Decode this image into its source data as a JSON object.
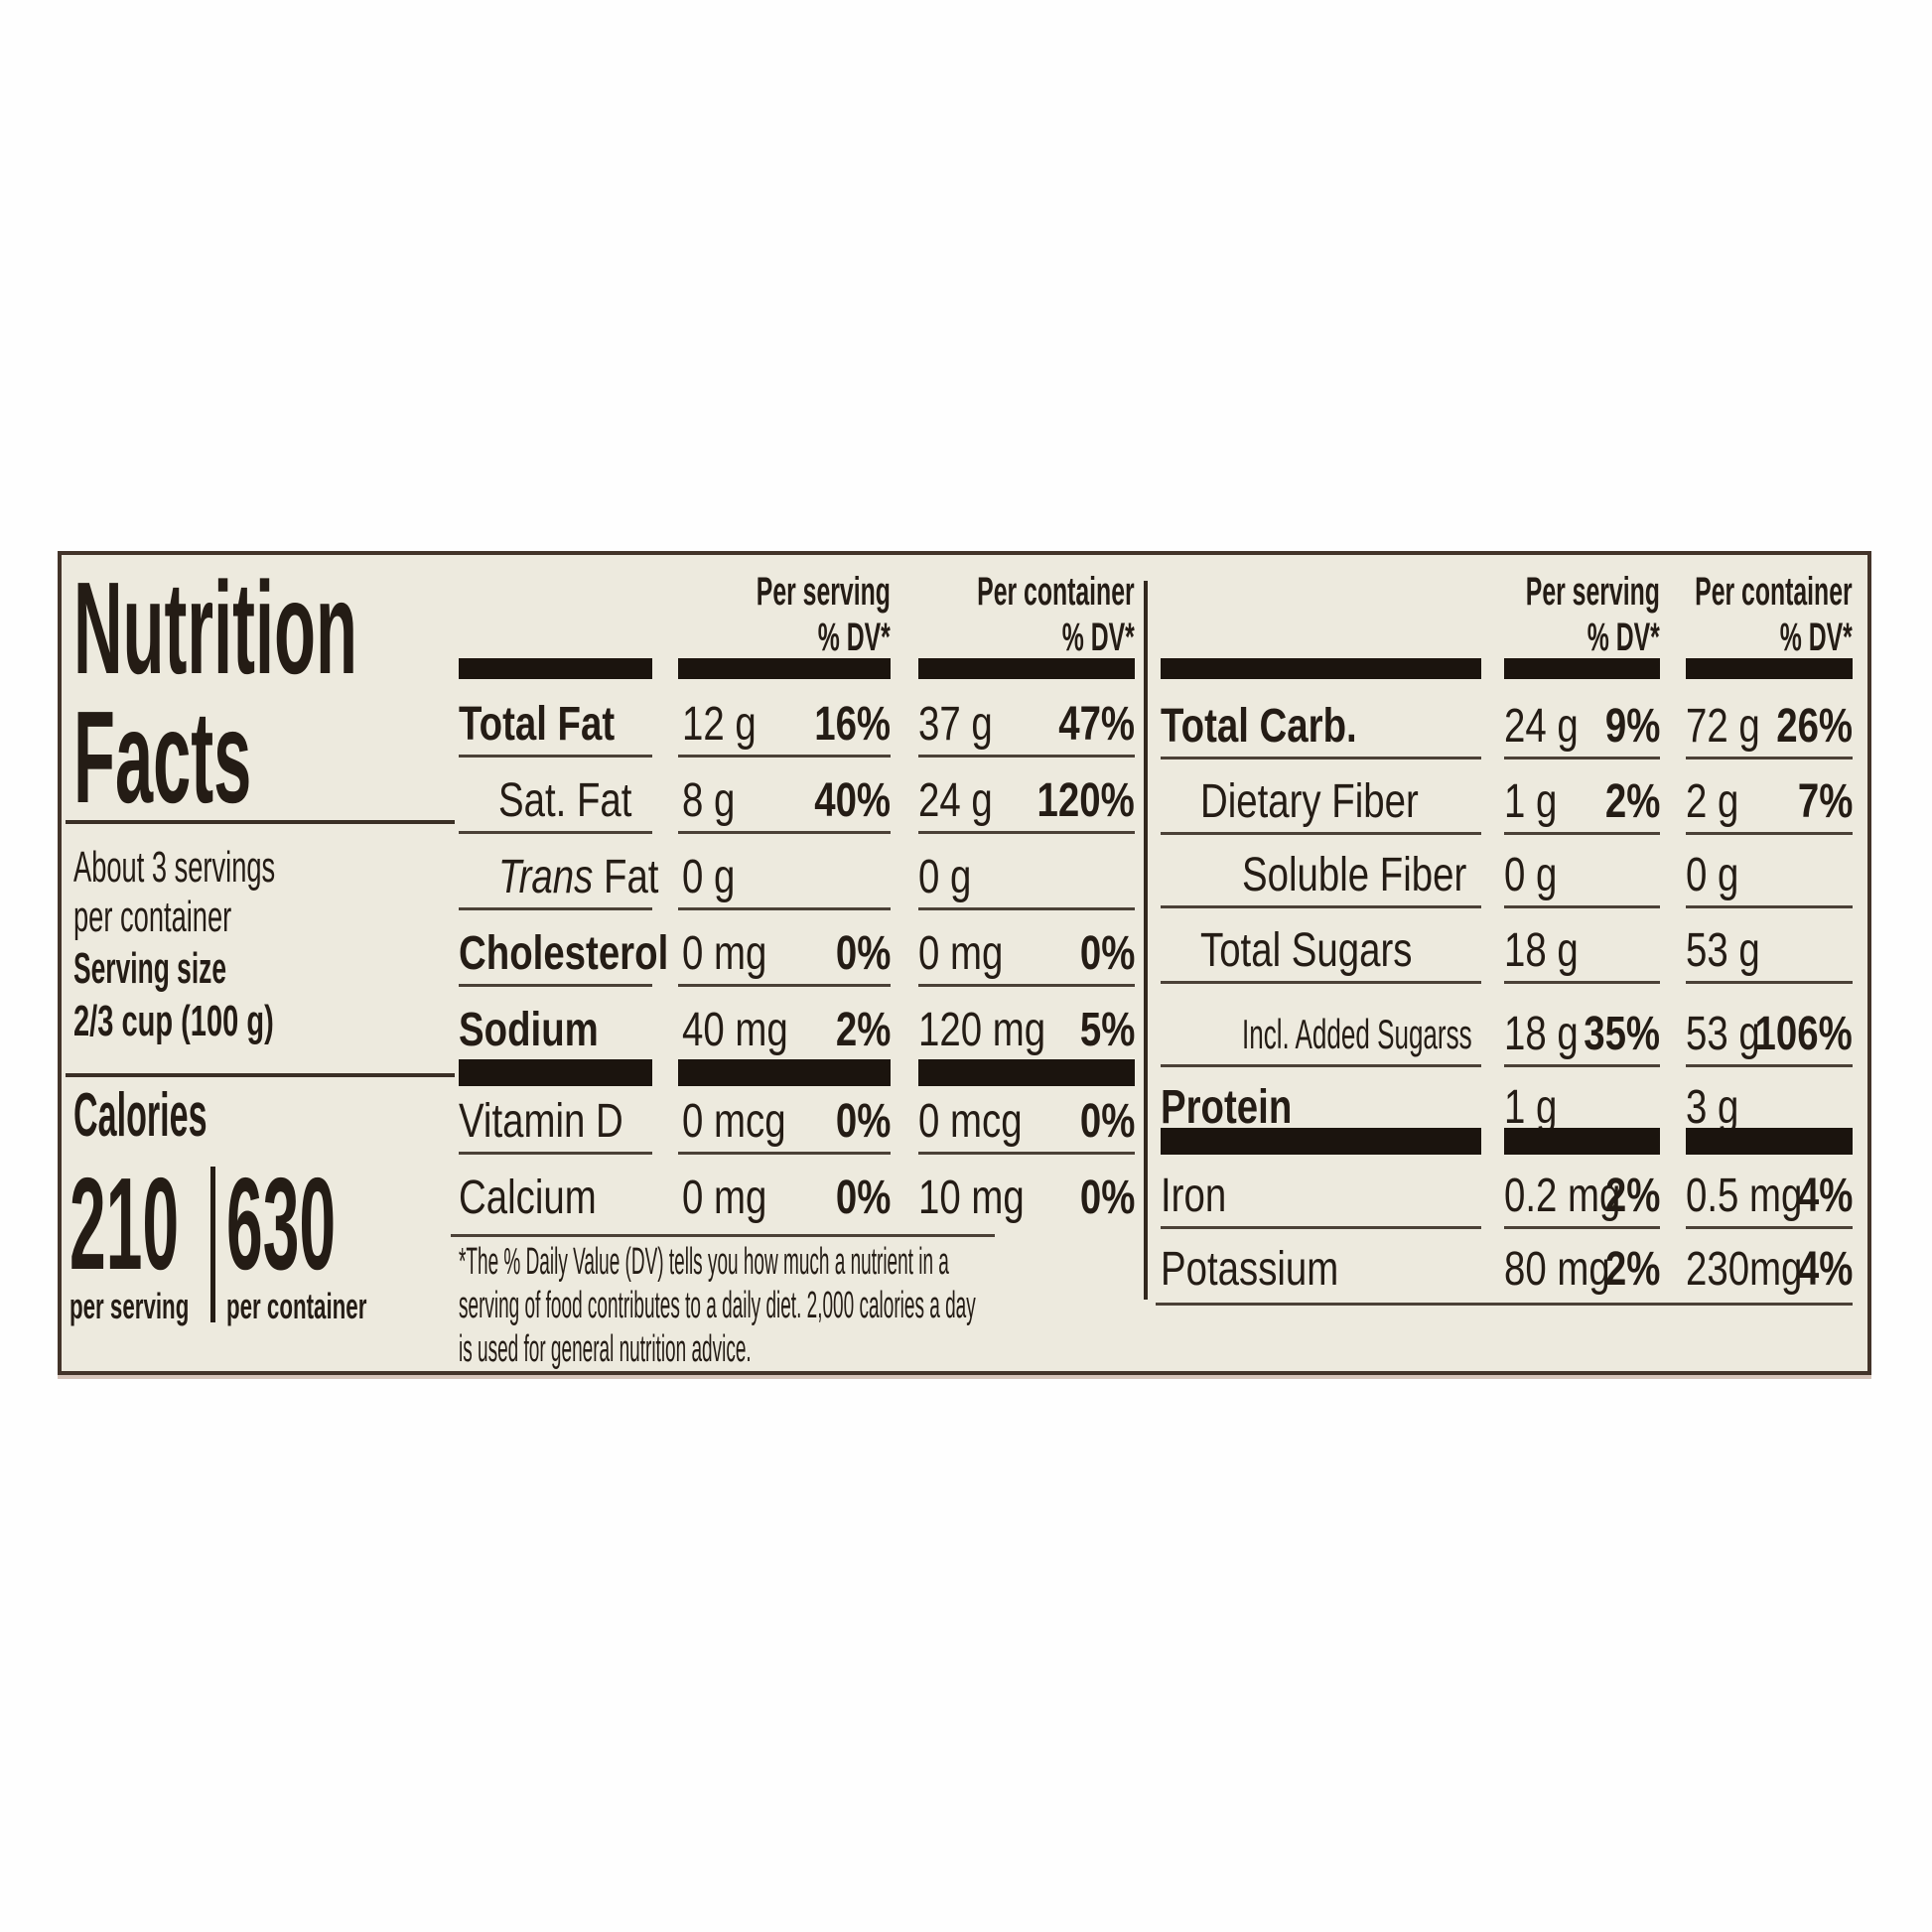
{
  "label": {
    "background_color": "#edeade",
    "border_color": "#43342a",
    "text_color": "#241c15",
    "bar_color": "#1b140e",
    "title_lines": [
      "Nutrition",
      "Facts"
    ],
    "servings_line1": "About 3 servings",
    "servings_line2": "per container",
    "serving_size_label": "Serving size",
    "serving_size_value": "2/3 cup (100 g)",
    "calories": {
      "label": "Calories",
      "per_serving_value": "210",
      "per_container_value": "630",
      "per_serving_caption": "per serving",
      "per_container_caption": "per container"
    },
    "column_headers": {
      "per_serving": "Per serving",
      "per_container": "Per container",
      "dv": "% DV*"
    },
    "left_table": {
      "rows": [
        {
          "name": "Total Fat",
          "s_amt": "12 g",
          "s_dv": "16%",
          "c_amt": "37 g",
          "c_dv": "47%"
        },
        {
          "name": "Sat. Fat",
          "s_amt": "8 g",
          "s_dv": "40%",
          "c_amt": "24 g",
          "c_dv": "120%"
        },
        {
          "name_italic": "Trans",
          "name_rest": " Fat",
          "s_amt": "0 g",
          "c_amt": "0 g"
        },
        {
          "name": "Cholesterol",
          "s_amt": "0 mg",
          "s_dv": "0%",
          "c_amt": "0 mg",
          "c_dv": "0%"
        },
        {
          "name": "Sodium",
          "s_amt": "40 mg",
          "s_dv": "2%",
          "c_amt": "120 mg",
          "c_dv": "5%"
        },
        {
          "name": "Vitamin D",
          "s_amt": "0 mcg",
          "s_dv": "0%",
          "c_amt": "0 mcg",
          "c_dv": "0%"
        },
        {
          "name": "Calcium",
          "s_amt": "0 mg",
          "s_dv": "0%",
          "c_amt": "10 mg",
          "c_dv": "0%"
        }
      ]
    },
    "right_table": {
      "rows": [
        {
          "name": "Total Carb.",
          "s_amt": "24 g",
          "s_dv": "9%",
          "c_amt": "72 g",
          "c_dv": "26%"
        },
        {
          "name": "Dietary Fiber",
          "s_amt": "1 g",
          "s_dv": "2%",
          "c_amt": "2 g",
          "c_dv": "7%"
        },
        {
          "name": "Soluble Fiber",
          "s_amt": "0 g",
          "c_amt": "0 g"
        },
        {
          "name": "Total Sugars",
          "s_amt": "18 g",
          "c_amt": "53 g"
        },
        {
          "name": "Incl. Added Sugarss",
          "s_amt": "18 g",
          "s_dv": "35%",
          "c_amt": "53 g",
          "c_dv": "106%"
        },
        {
          "name": "Protein",
          "s_amt": "1 g",
          "c_amt": "3 g"
        },
        {
          "name": "Iron",
          "s_amt": "0.2 mg",
          "s_dv": "2%",
          "c_amt": "0.5 mg",
          "c_dv": "4%"
        },
        {
          "name": "Potassium",
          "s_amt": "80 mg",
          "s_dv": "2%",
          "c_amt": "230mg",
          "c_dv": "4%"
        }
      ]
    },
    "footnote": "*The % Daily Value (DV) tells you how much a nutrient in a serving of food contributes to a daily diet. 2,000 calories a day is used for general nutrition advice."
  }
}
